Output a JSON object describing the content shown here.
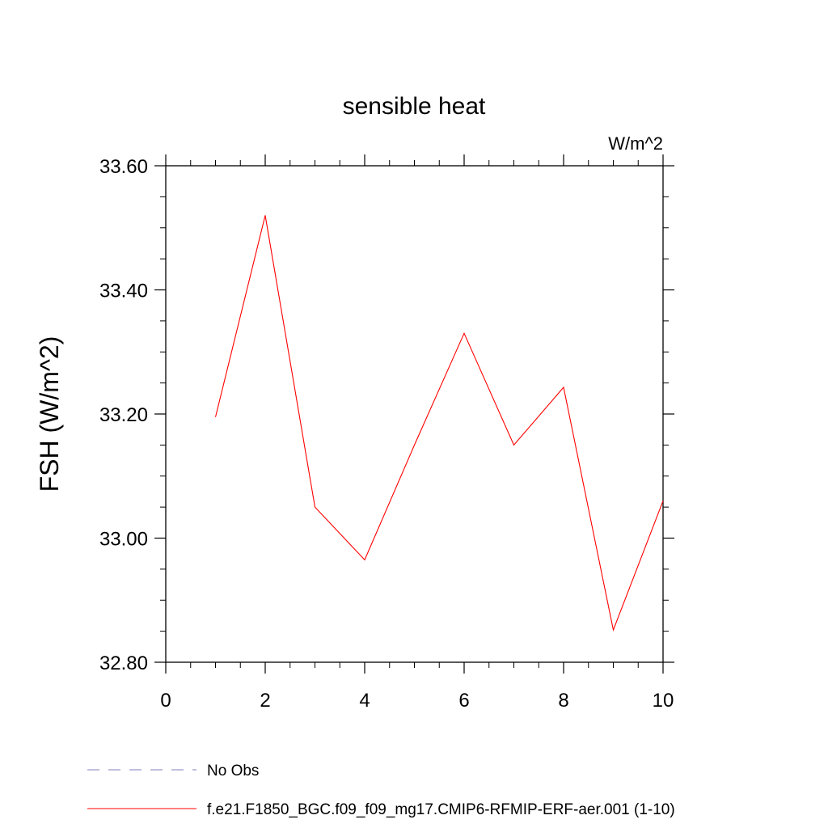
{
  "chart_data": {
    "type": "line",
    "title": "sensible heat",
    "units_label": "W/m^2",
    "ylabel": "FSH  (W/m^2)",
    "xlabel": "",
    "xlim": [
      0,
      10
    ],
    "ylim": [
      32.8,
      33.6
    ],
    "x_ticks": [
      0,
      2,
      4,
      6,
      8,
      10
    ],
    "x_tick_labels": [
      "0",
      "2",
      "4",
      "6",
      "8",
      "10"
    ],
    "y_ticks": [
      32.8,
      33.0,
      33.2,
      33.4,
      33.6
    ],
    "y_tick_labels": [
      "32.80",
      "33.00",
      "33.20",
      "33.40",
      "33.60"
    ],
    "grid": false,
    "legend_position": "bottom-left",
    "series": [
      {
        "name": "f.e21.F1850_BGC.f09_f09_mg17.CMIP6-RFMIP-ERF-aer.001 (1-10)",
        "color": "#ff0000",
        "dash": "solid",
        "x": [
          1,
          2,
          3,
          4,
          5,
          6,
          7,
          8,
          9,
          10
        ],
        "values": [
          33.195,
          33.52,
          33.05,
          32.965,
          33.15,
          33.33,
          33.15,
          33.243,
          32.852,
          33.06
        ]
      }
    ],
    "legend": [
      {
        "label": "No Obs",
        "color": "#7f7fbf",
        "dash": "dashed"
      },
      {
        "label": "f.e21.F1850_BGC.f09_f09_mg17.CMIP6-RFMIP-ERF-aer.001 (1-10)",
        "color": "#ff0000",
        "dash": "solid"
      }
    ]
  }
}
